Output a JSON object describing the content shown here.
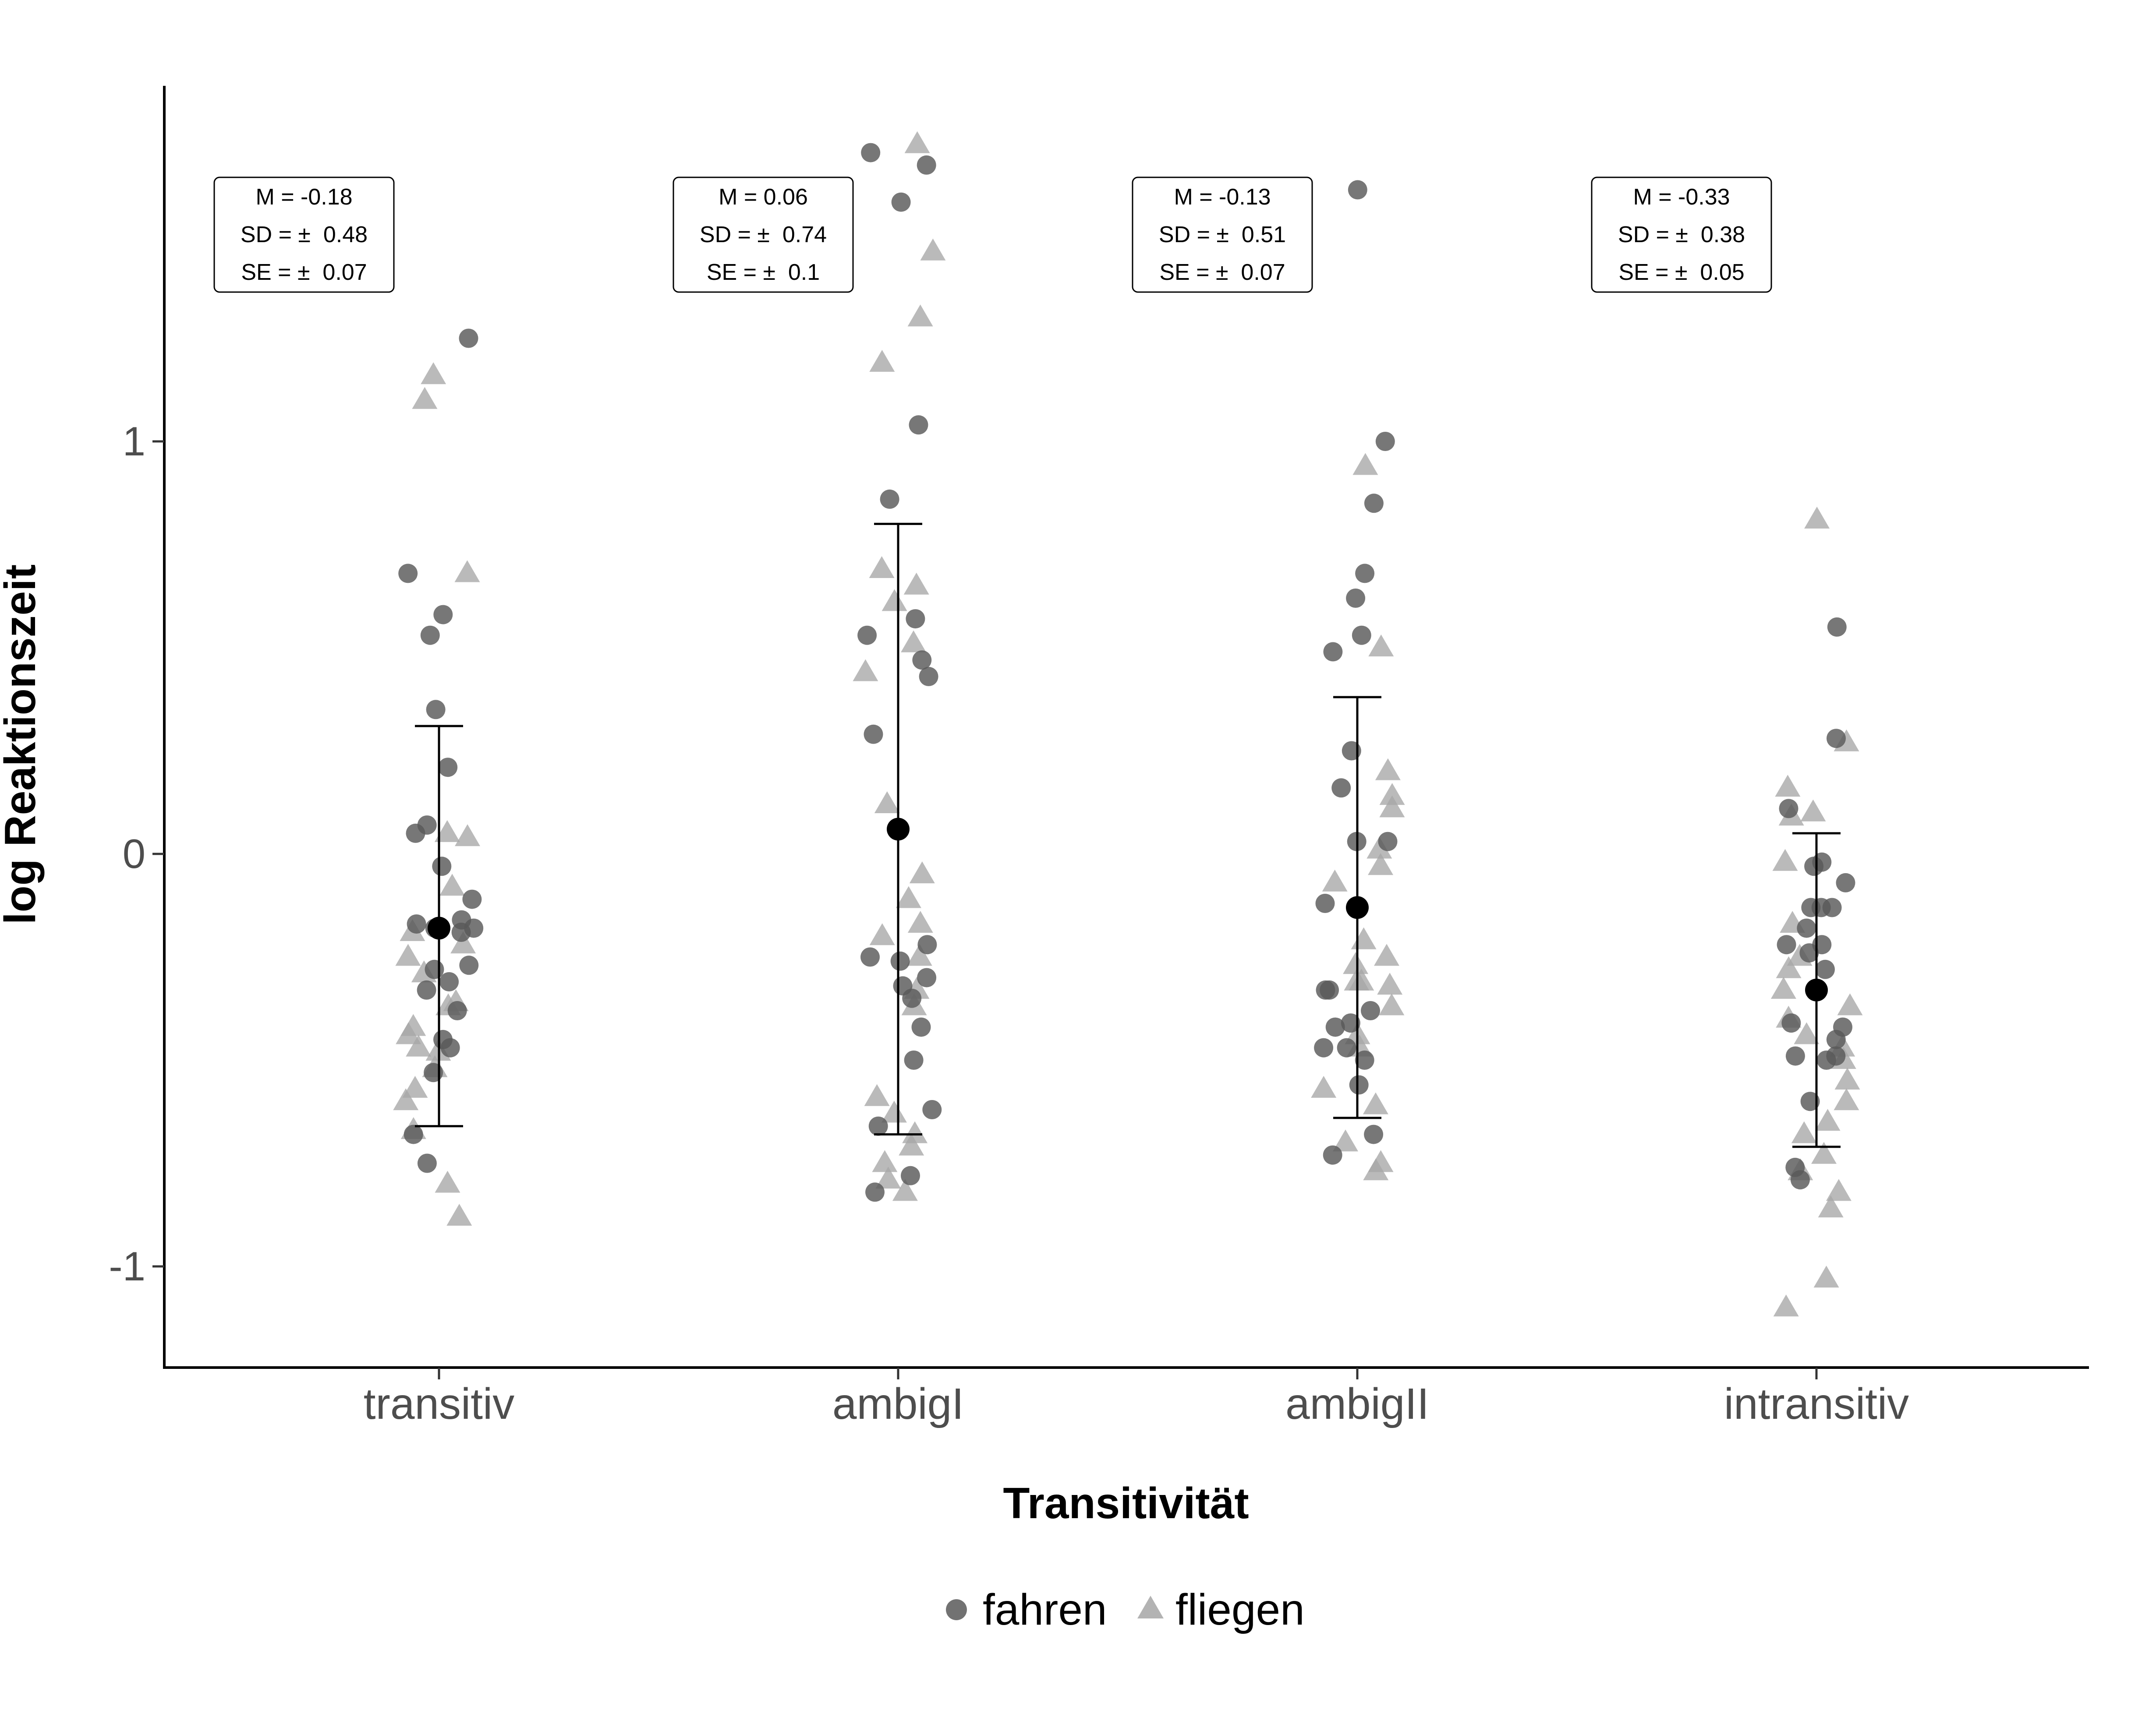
{
  "chart_data": {
    "type": "scatter",
    "xlabel": "Transitivität",
    "ylabel": "log Reaktionszeit",
    "categories": [
      "transitiv",
      "ambigI",
      "ambigII",
      "intransitiv"
    ],
    "ylim": [
      -1.25,
      1.85
    ],
    "yticks": [
      -1,
      0,
      1
    ],
    "ytick_labels": [
      "-1",
      "0",
      "1"
    ],
    "grid": false,
    "legend_position": "bottom",
    "colors": {
      "fahren": "#595959",
      "fliegen": "#a6a6a6",
      "mean": "#000000"
    },
    "series": [
      {
        "name": "fahren",
        "marker": "circle",
        "points": [
          {
            "category": "transitiv",
            "values": [
              1.25,
              0.68,
              0.58,
              0.53,
              0.35,
              0.21,
              0.05,
              0.07,
              -0.03,
              -0.11,
              -0.16,
              -0.17,
              -0.18,
              -0.19,
              -0.18,
              -0.27,
              -0.28,
              -0.31,
              -0.33,
              -0.38,
              -0.45,
              -0.47,
              -0.53,
              -0.68,
              -0.75
            ]
          },
          {
            "category": "ambigI",
            "values": [
              1.7,
              1.67,
              1.58,
              1.04,
              0.86,
              0.57,
              0.53,
              0.47,
              0.43,
              0.29,
              -0.22,
              -0.25,
              -0.26,
              -0.3,
              -0.32,
              -0.35,
              -0.42,
              -0.5,
              -0.62,
              -0.66,
              -0.78,
              -0.82
            ]
          },
          {
            "category": "ambigII",
            "values": [
              1.61,
              1.0,
              0.85,
              0.68,
              0.62,
              0.53,
              0.49,
              0.25,
              0.16,
              0.03,
              0.03,
              -0.12,
              -0.33,
              -0.33,
              -0.38,
              -0.41,
              -0.42,
              -0.47,
              -0.47,
              -0.5,
              -0.56,
              -0.68,
              -0.73
            ]
          },
          {
            "category": "intransitiv",
            "values": [
              0.55,
              0.28,
              0.11,
              -0.03,
              -0.02,
              -0.07,
              -0.13,
              -0.13,
              -0.13,
              -0.18,
              -0.22,
              -0.22,
              -0.24,
              -0.28,
              -0.41,
              -0.42,
              -0.45,
              -0.49,
              -0.49,
              -0.5,
              -0.6,
              -0.76,
              -0.79
            ]
          }
        ]
      },
      {
        "name": "fliegen",
        "marker": "triangle",
        "points": [
          {
            "category": "transitiv",
            "values": [
              1.16,
              1.1,
              0.68,
              0.05,
              0.04,
              -0.08,
              -0.19,
              -0.22,
              -0.25,
              -0.29,
              -0.36,
              -0.37,
              -0.42,
              -0.44,
              -0.47,
              -0.48,
              -0.52,
              -0.57,
              -0.6,
              -0.67,
              -0.8,
              -0.88
            ]
          },
          {
            "category": "ambigI",
            "values": [
              1.72,
              1.46,
              1.3,
              1.19,
              0.69,
              0.65,
              0.61,
              0.51,
              0.44,
              0.12,
              -0.05,
              -0.11,
              -0.17,
              -0.2,
              -0.25,
              -0.33,
              -0.37,
              -0.59,
              -0.63,
              -0.68,
              -0.71,
              -0.75,
              -0.79,
              -0.82
            ]
          },
          {
            "category": "ambigII",
            "values": [
              0.94,
              0.5,
              0.2,
              0.14,
              0.11,
              0.01,
              -0.03,
              -0.07,
              -0.21,
              -0.25,
              -0.27,
              -0.31,
              -0.31,
              -0.32,
              -0.37,
              -0.44,
              -0.47,
              -0.57,
              -0.61,
              -0.7,
              -0.75,
              -0.77
            ]
          },
          {
            "category": "intransitiv",
            "values": [
              0.81,
              0.27,
              0.16,
              0.1,
              0.09,
              -0.02,
              -0.17,
              -0.25,
              -0.28,
              -0.33,
              -0.37,
              -0.4,
              -0.44,
              -0.47,
              -0.5,
              -0.55,
              -0.6,
              -0.65,
              -0.68,
              -0.73,
              -0.77,
              -0.82,
              -0.86,
              -1.03,
              -1.1
            ]
          }
        ]
      }
    ],
    "summary": [
      {
        "category": "transitiv",
        "mean": -0.18,
        "lower": -0.66,
        "upper": 0.31,
        "stats": [
          "M = -0.18",
          "SD = ±  0.48",
          "SE = ±  0.07"
        ]
      },
      {
        "category": "ambigI",
        "mean": 0.06,
        "lower": -0.68,
        "upper": 0.8,
        "stats": [
          "M = 0.06",
          "SD = ±  0.74",
          "SE = ±  0.1"
        ]
      },
      {
        "category": "ambigII",
        "mean": -0.13,
        "lower": -0.64,
        "upper": 0.38,
        "stats": [
          "M = -0.13",
          "SD = ±  0.51",
          "SE = ±  0.07"
        ]
      },
      {
        "category": "intransitiv",
        "mean": -0.33,
        "lower": -0.71,
        "upper": 0.05,
        "stats": [
          "M = -0.33",
          "SD = ±  0.38",
          "SE = ±  0.05"
        ]
      }
    ]
  }
}
